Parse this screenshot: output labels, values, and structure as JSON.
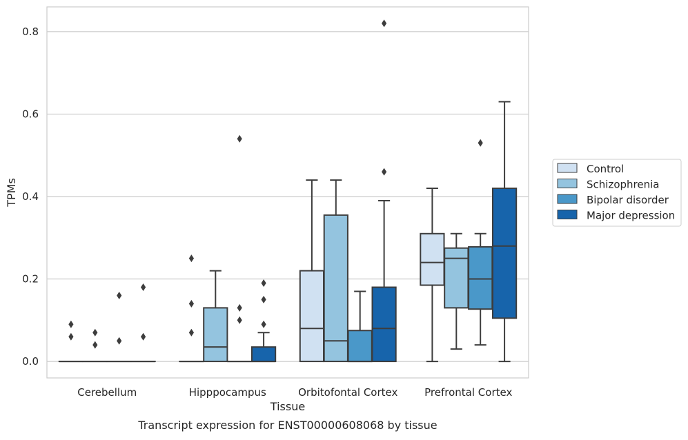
{
  "chart_data": {
    "type": "box",
    "title": "",
    "caption": "Transcript expression for ENST00000608068 by tissue",
    "xlabel": "Tissue",
    "ylabel": "TPMs",
    "ylim": [
      -0.04,
      0.86
    ],
    "yticks": [
      0.0,
      0.2,
      0.4,
      0.6,
      0.8
    ],
    "ytick_labels": [
      "0.0",
      "0.2",
      "0.4",
      "0.6",
      "0.8"
    ],
    "grid": "horizontal",
    "legend_position": "right",
    "categories": [
      "Cerebellum",
      "Hipppocampus",
      "Orbitofontal Cortex",
      "Prefrontal Cortex"
    ],
    "series": [
      {
        "name": "Control",
        "color": "#d0e1f2",
        "boxes": [
          {
            "q1": 0,
            "median": 0,
            "q3": 0,
            "whislo": 0,
            "whishi": 0,
            "fliers": [
              0.09,
              0.06
            ]
          },
          {
            "q1": 0,
            "median": 0,
            "q3": 0,
            "whislo": 0,
            "whishi": 0,
            "fliers": [
              0.25,
              0.14,
              0.07
            ]
          },
          {
            "q1": 0,
            "median": 0.08,
            "q3": 0.22,
            "whislo": 0,
            "whishi": 0.44,
            "fliers": []
          },
          {
            "q1": 0.185,
            "median": 0.24,
            "q3": 0.31,
            "whislo": 0,
            "whishi": 0.42,
            "fliers": []
          }
        ]
      },
      {
        "name": "Schizophrenia",
        "color": "#94c4df",
        "boxes": [
          {
            "q1": 0,
            "median": 0,
            "q3": 0,
            "whislo": 0,
            "whishi": 0,
            "fliers": [
              0.07,
              0.04
            ]
          },
          {
            "q1": 0,
            "median": 0.035,
            "q3": 0.13,
            "whislo": 0,
            "whishi": 0.22,
            "fliers": []
          },
          {
            "q1": 0,
            "median": 0.05,
            "q3": 0.355,
            "whislo": 0,
            "whishi": 0.44,
            "fliers": []
          },
          {
            "q1": 0.13,
            "median": 0.25,
            "q3": 0.275,
            "whislo": 0.03,
            "whishi": 0.31,
            "fliers": []
          }
        ]
      },
      {
        "name": "Bipolar disorder",
        "color": "#4a98c9",
        "boxes": [
          {
            "q1": 0,
            "median": 0,
            "q3": 0,
            "whislo": 0,
            "whishi": 0,
            "fliers": [
              0.16,
              0.05
            ]
          },
          {
            "q1": 0,
            "median": 0,
            "q3": 0,
            "whislo": 0,
            "whishi": 0,
            "fliers": [
              0.54,
              0.13,
              0.1
            ]
          },
          {
            "q1": 0,
            "median": 0,
            "q3": 0.075,
            "whislo": 0,
            "whishi": 0.17,
            "fliers": []
          },
          {
            "q1": 0.127,
            "median": 0.2,
            "q3": 0.278,
            "whislo": 0.04,
            "whishi": 0.31,
            "fliers": [
              0.53
            ]
          }
        ]
      },
      {
        "name": "Major depression",
        "color": "#1764ab",
        "boxes": [
          {
            "q1": 0,
            "median": 0,
            "q3": 0,
            "whislo": 0,
            "whishi": 0,
            "fliers": [
              0.18,
              0.06
            ]
          },
          {
            "q1": 0,
            "median": 0,
            "q3": 0.035,
            "whislo": 0,
            "whishi": 0.07,
            "fliers": [
              0.19,
              0.15,
              0.09
            ]
          },
          {
            "q1": 0,
            "median": 0.08,
            "q3": 0.18,
            "whislo": 0,
            "whishi": 0.39,
            "fliers": [
              0.82,
              0.46
            ]
          },
          {
            "q1": 0.105,
            "median": 0.28,
            "q3": 0.42,
            "whislo": 0,
            "whishi": 0.63,
            "fliers": []
          }
        ]
      }
    ]
  }
}
